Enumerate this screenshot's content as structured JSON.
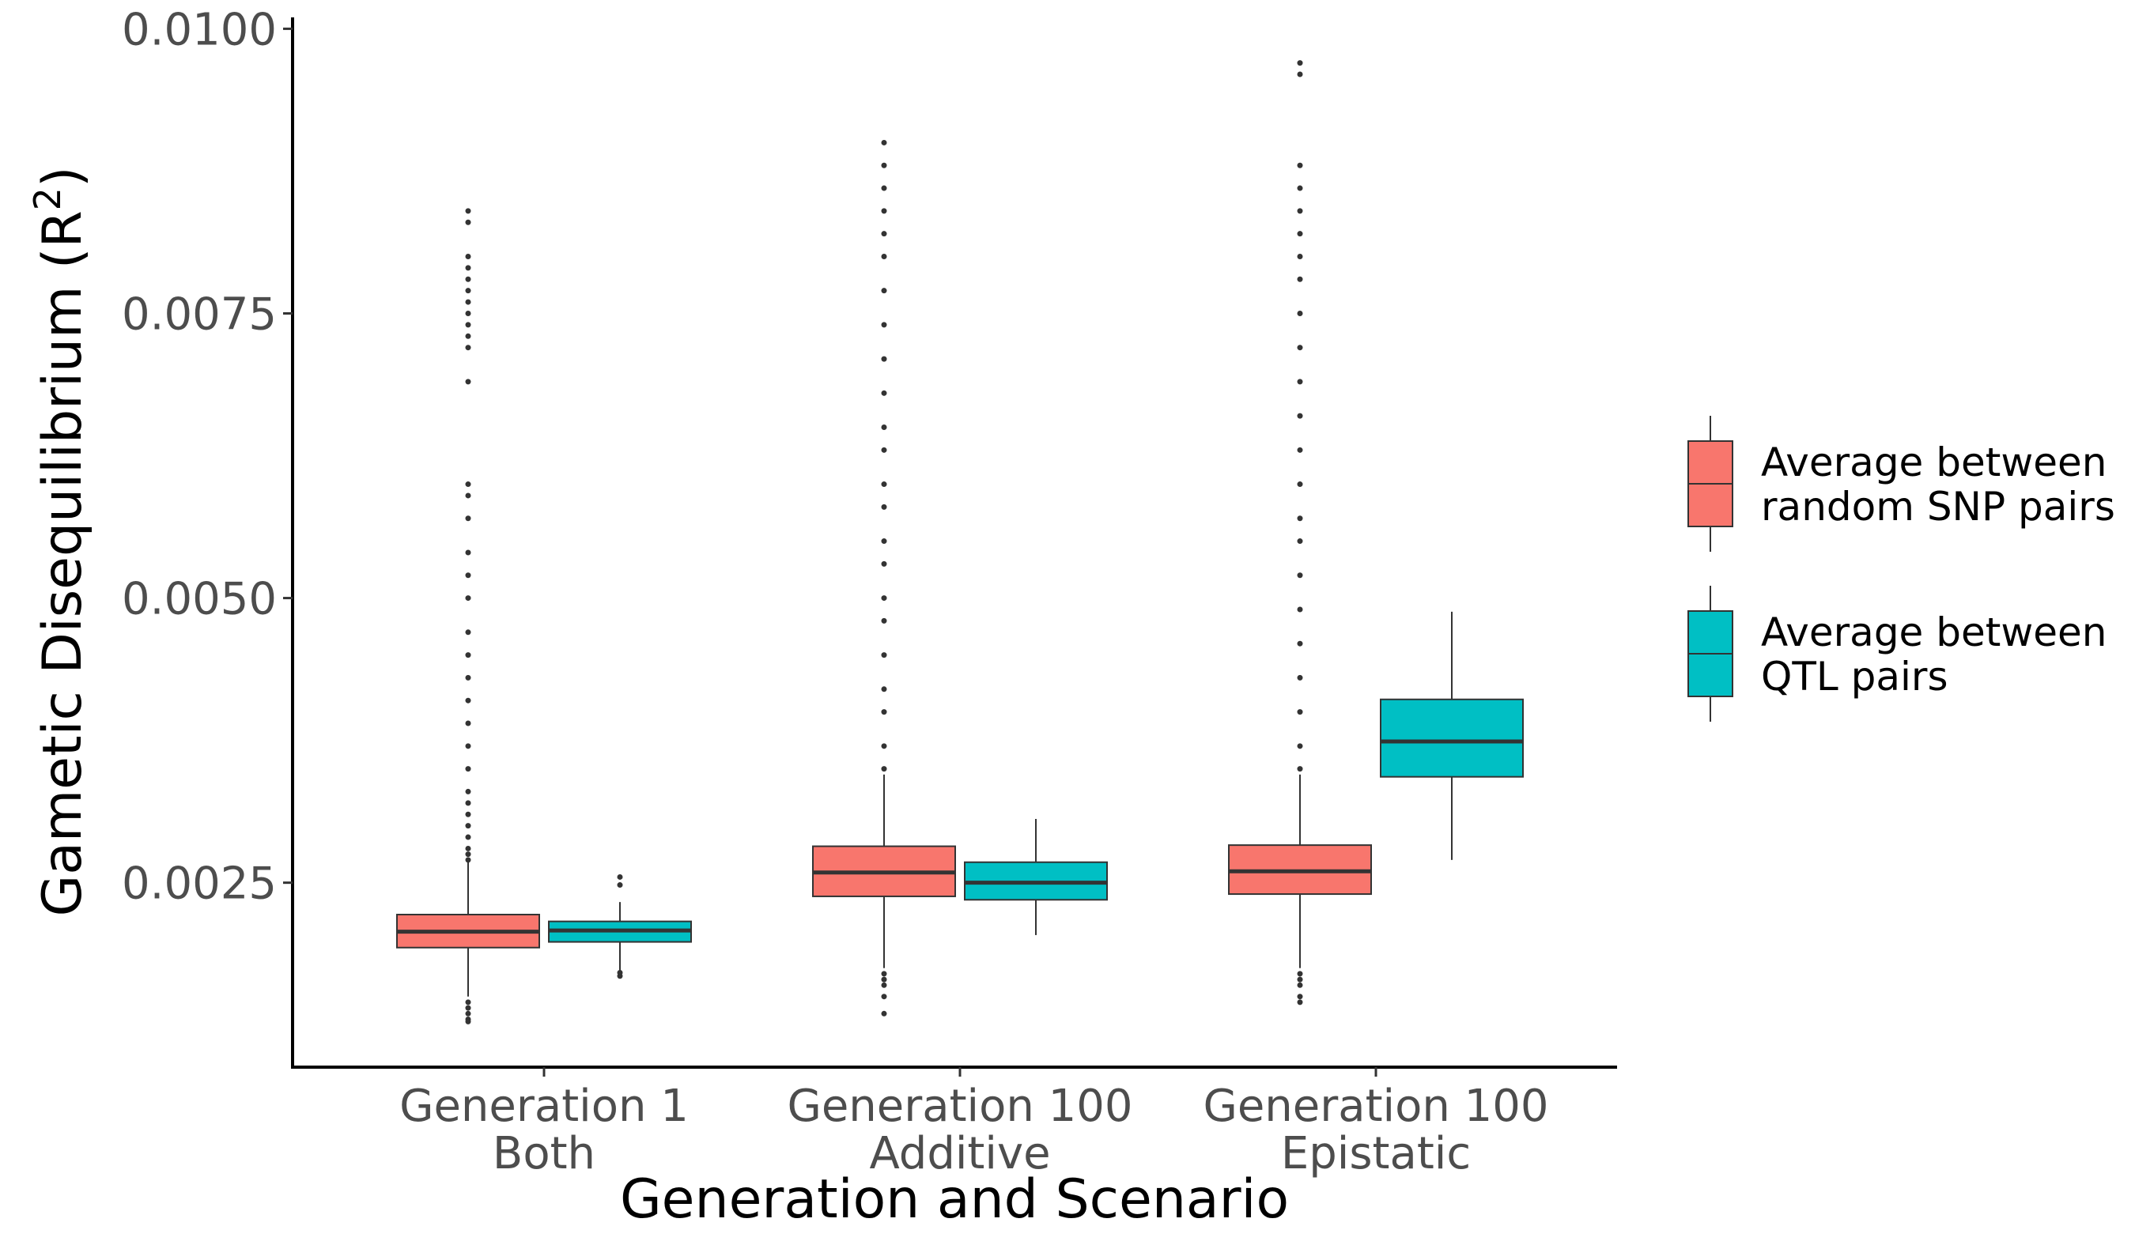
{
  "chart_data": {
    "type": "box",
    "ylabel": "Gametic Disequilibrium (R",
    "ylabel_sup": "2",
    "ylabel_end": ")",
    "xlabel": "Generation and Scenario",
    "ylim": [
      0.00088,
      0.0101
    ],
    "yticks": [
      {
        "value": 0.0025,
        "label": "0.0025"
      },
      {
        "value": 0.005,
        "label": "0.0050"
      },
      {
        "value": 0.0075,
        "label": "0.0075"
      },
      {
        "value": 0.01,
        "label": "0.0100"
      }
    ],
    "categories": [
      {
        "line1": "Generation 1",
        "line2": "Both"
      },
      {
        "line1": "Generation 100",
        "line2": "Additive"
      },
      {
        "line1": "Generation 100",
        "line2": "Epistatic"
      }
    ],
    "series": [
      {
        "name": "Average between random SNP pairs",
        "legend_lines": [
          "Average between",
          "random SNP pairs"
        ],
        "color": "#F8766D",
        "boxes": [
          {
            "lower": 0.0015,
            "q1": 0.00193,
            "median": 0.00207,
            "q3": 0.00222,
            "upper": 0.00268,
            "outliers": [
              0.0013,
              0.00128,
              0.00135,
              0.0014,
              0.00145,
              0.0027,
              0.00275,
              0.0028,
              0.0029,
              0.003,
              0.0031,
              0.0032,
              0.0033,
              0.0035,
              0.0037,
              0.0039,
              0.0041,
              0.0043,
              0.0045,
              0.0047,
              0.005,
              0.0052,
              0.0054,
              0.0057,
              0.0059,
              0.006,
              0.0069,
              0.0072,
              0.0073,
              0.0074,
              0.0075,
              0.0076,
              0.0077,
              0.0078,
              0.0079,
              0.008,
              0.0083,
              0.0084
            ]
          },
          {
            "lower": 0.00175,
            "q1": 0.00238,
            "median": 0.00259,
            "q3": 0.00282,
            "upper": 0.00345,
            "outliers": [
              0.00135,
              0.0015,
              0.0016,
              0.00165,
              0.0017,
              0.0035,
              0.0037,
              0.004,
              0.0042,
              0.0045,
              0.0048,
              0.005,
              0.0053,
              0.0055,
              0.0058,
              0.006,
              0.0063,
              0.0065,
              0.0068,
              0.0071,
              0.0074,
              0.0077,
              0.008,
              0.0082,
              0.0084,
              0.0086,
              0.0088,
              0.009
            ]
          },
          {
            "lower": 0.00175,
            "q1": 0.0024,
            "median": 0.0026,
            "q3": 0.00283,
            "upper": 0.00345,
            "outliers": [
              0.00145,
              0.0015,
              0.0016,
              0.00165,
              0.0017,
              0.0035,
              0.0037,
              0.004,
              0.0043,
              0.0046,
              0.0049,
              0.0052,
              0.0055,
              0.0057,
              0.006,
              0.0063,
              0.0066,
              0.0069,
              0.0072,
              0.0075,
              0.0078,
              0.008,
              0.0082,
              0.0084,
              0.0086,
              0.0088,
              0.0096,
              0.0097
            ]
          }
        ]
      },
      {
        "name": "Average between QTL pairs",
        "legend_lines": [
          "Average between",
          "QTL pairs"
        ],
        "color": "#00BFC4",
        "boxes": [
          {
            "lower": 0.0017,
            "q1": 0.00198,
            "median": 0.00208,
            "q3": 0.00216,
            "upper": 0.00233,
            "outliers": [
              0.00168,
              0.00171,
              0.00248,
              0.00255
            ]
          },
          {
            "lower": 0.00204,
            "q1": 0.00235,
            "median": 0.0025,
            "q3": 0.00268,
            "upper": 0.00306,
            "outliers": []
          },
          {
            "lower": 0.0027,
            "q1": 0.00343,
            "median": 0.00374,
            "q3": 0.00411,
            "upper": 0.00488,
            "outliers": []
          }
        ]
      }
    ],
    "legend_position": "right"
  }
}
